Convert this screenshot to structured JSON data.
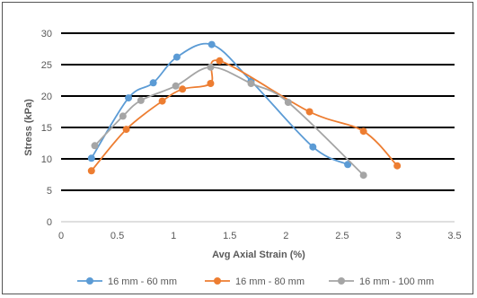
{
  "chart_data": {
    "type": "line",
    "xlabel": "Avg Axial Strain (%)",
    "ylabel": "Stress (kPa)",
    "xlim": [
      0,
      3.5
    ],
    "ylim": [
      0,
      30
    ],
    "x_ticks": [
      "0",
      "0.5",
      "1",
      "1.5",
      "2",
      "2.5",
      "3",
      "3.5"
    ],
    "y_ticks": [
      "0",
      "5",
      "10",
      "15",
      "20",
      "25",
      "30"
    ],
    "grid": "horizontal",
    "legend_position": "bottom",
    "series": [
      {
        "name": "16 mm - 60 mm",
        "color": "#5B9BD5",
        "points": [
          [
            0.27,
            10.1
          ],
          [
            0.6,
            19.7
          ],
          [
            0.82,
            22.1
          ],
          [
            1.03,
            26.2
          ],
          [
            1.34,
            28.2
          ],
          [
            1.69,
            22.4
          ],
          [
            2.24,
            11.9
          ],
          [
            2.55,
            9.1
          ]
        ]
      },
      {
        "name": "16 mm - 80 mm",
        "color": "#ED7D31",
        "points": [
          [
            0.27,
            8.1
          ],
          [
            0.58,
            14.7
          ],
          [
            0.9,
            19.2
          ],
          [
            1.08,
            21.1
          ],
          [
            1.33,
            22.0
          ],
          [
            1.41,
            25.6
          ],
          [
            2.21,
            17.5
          ],
          [
            2.69,
            14.4
          ],
          [
            2.99,
            8.9
          ]
        ]
      },
      {
        "name": "16 mm - 100 mm",
        "color": "#A5A5A5",
        "points": [
          [
            0.3,
            12.1
          ],
          [
            0.55,
            16.8
          ],
          [
            0.71,
            19.3
          ],
          [
            1.02,
            21.6
          ],
          [
            1.33,
            24.6
          ],
          [
            1.69,
            22.0
          ],
          [
            2.02,
            19.0
          ],
          [
            2.69,
            7.4
          ]
        ]
      }
    ]
  }
}
